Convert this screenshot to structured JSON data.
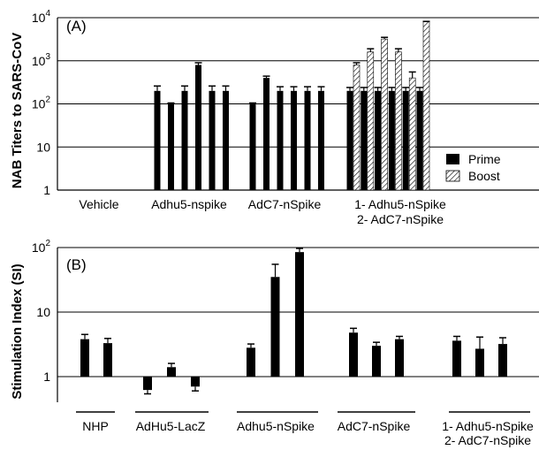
{
  "colors": {
    "prime": "#000000",
    "boost_hatch": "#000000",
    "axis": "#000000"
  },
  "chart_data": [
    {
      "type": "bar",
      "panel_label": "(A)",
      "ylabel": "NAB Titers to SARS-CoV",
      "yscale": "log",
      "ylim": [
        1,
        10000
      ],
      "yticks": [
        {
          "value": 1,
          "label": "1"
        },
        {
          "value": 10,
          "label": "10"
        },
        {
          "value": 100,
          "label": "10",
          "exp": "2"
        },
        {
          "value": 1000,
          "label": "10",
          "exp": "3"
        },
        {
          "value": 10000,
          "label": "10",
          "exp": "4"
        }
      ],
      "grid": true,
      "legend_position": "bottom-right",
      "legend": [
        {
          "name": "Prime",
          "style": "solid"
        },
        {
          "name": "Boost",
          "style": "hatch"
        }
      ],
      "groups": [
        {
          "label": [
            "Vehicle"
          ],
          "bars": []
        },
        {
          "label": [
            "Adhu5-nspike"
          ],
          "bars": [
            {
              "prime": 200,
              "err": 60
            },
            {
              "prime": 100,
              "err": 5
            },
            {
              "prime": 200,
              "err": 60
            },
            {
              "prime": 800,
              "err": 100
            },
            {
              "prime": 200,
              "err": 60
            },
            {
              "prime": 200,
              "err": 60
            }
          ]
        },
        {
          "label": [
            "AdC7-nSpike"
          ],
          "bars": [
            {
              "prime": 100,
              "err": 5
            },
            {
              "prime": 400,
              "err": 40
            },
            {
              "prime": 200,
              "err": 50
            },
            {
              "prime": 200,
              "err": 50
            },
            {
              "prime": 200,
              "err": 50
            },
            {
              "prime": 200,
              "err": 50
            }
          ]
        },
        {
          "label": [
            "1- Adhu5-nSpike",
            "2- AdC7-nSpike"
          ],
          "bars": [
            {
              "prime": 200,
              "prime_err": 40,
              "boost": 800,
              "boost_err": 100
            },
            {
              "prime": 200,
              "prime_err": 40,
              "boost": 1600,
              "boost_err": 300
            },
            {
              "prime": 200,
              "prime_err": 40,
              "boost": 3200,
              "boost_err": 300
            },
            {
              "prime": 200,
              "prime_err": 40,
              "boost": 1600,
              "boost_err": 300
            },
            {
              "prime": 200,
              "prime_err": 40,
              "boost": 400,
              "boost_err": 150
            },
            {
              "prime": 200,
              "prime_err": 40,
              "boost": 8000,
              "boost_err": 200
            }
          ]
        }
      ]
    },
    {
      "type": "bar",
      "panel_label": "(B)",
      "ylabel": "Stimulation Index (SI)",
      "yscale": "log",
      "ylim": [
        0.4,
        100
      ],
      "yticks": [
        {
          "value": 1,
          "label": "1"
        },
        {
          "value": 10,
          "label": "10"
        },
        {
          "value": 100,
          "label": "10",
          "exp": "2"
        }
      ],
      "grid": true,
      "groups": [
        {
          "label": [
            "NHP"
          ],
          "bars": [
            {
              "value": 3.8,
              "err": 0.7
            },
            {
              "value": 3.3,
              "err": 0.6
            }
          ]
        },
        {
          "label": [
            "AdHu5-LacZ"
          ],
          "bars": [
            {
              "value": 0.62,
              "err": 0.08
            },
            {
              "value": 1.4,
              "err": 0.2
            },
            {
              "value": 0.7,
              "err": 0.1
            }
          ]
        },
        {
          "label": [
            "Adhu5-nSpike"
          ],
          "bars": [
            {
              "value": 2.8,
              "err": 0.4
            },
            {
              "value": 35,
              "err": 20
            },
            {
              "value": 85,
              "err": 12
            }
          ]
        },
        {
          "label": [
            "AdC7-nSpike"
          ],
          "bars": [
            {
              "value": 4.8,
              "err": 0.8
            },
            {
              "value": 3.0,
              "err": 0.4
            },
            {
              "value": 3.8,
              "err": 0.4
            }
          ]
        },
        {
          "label": [
            "1- Adhu5-nSpike",
            "2- AdC7-nSpike"
          ],
          "bars": [
            {
              "value": 3.6,
              "err": 0.6
            },
            {
              "value": 2.7,
              "err": 1.4
            },
            {
              "value": 3.2,
              "err": 0.8
            }
          ]
        }
      ]
    }
  ]
}
